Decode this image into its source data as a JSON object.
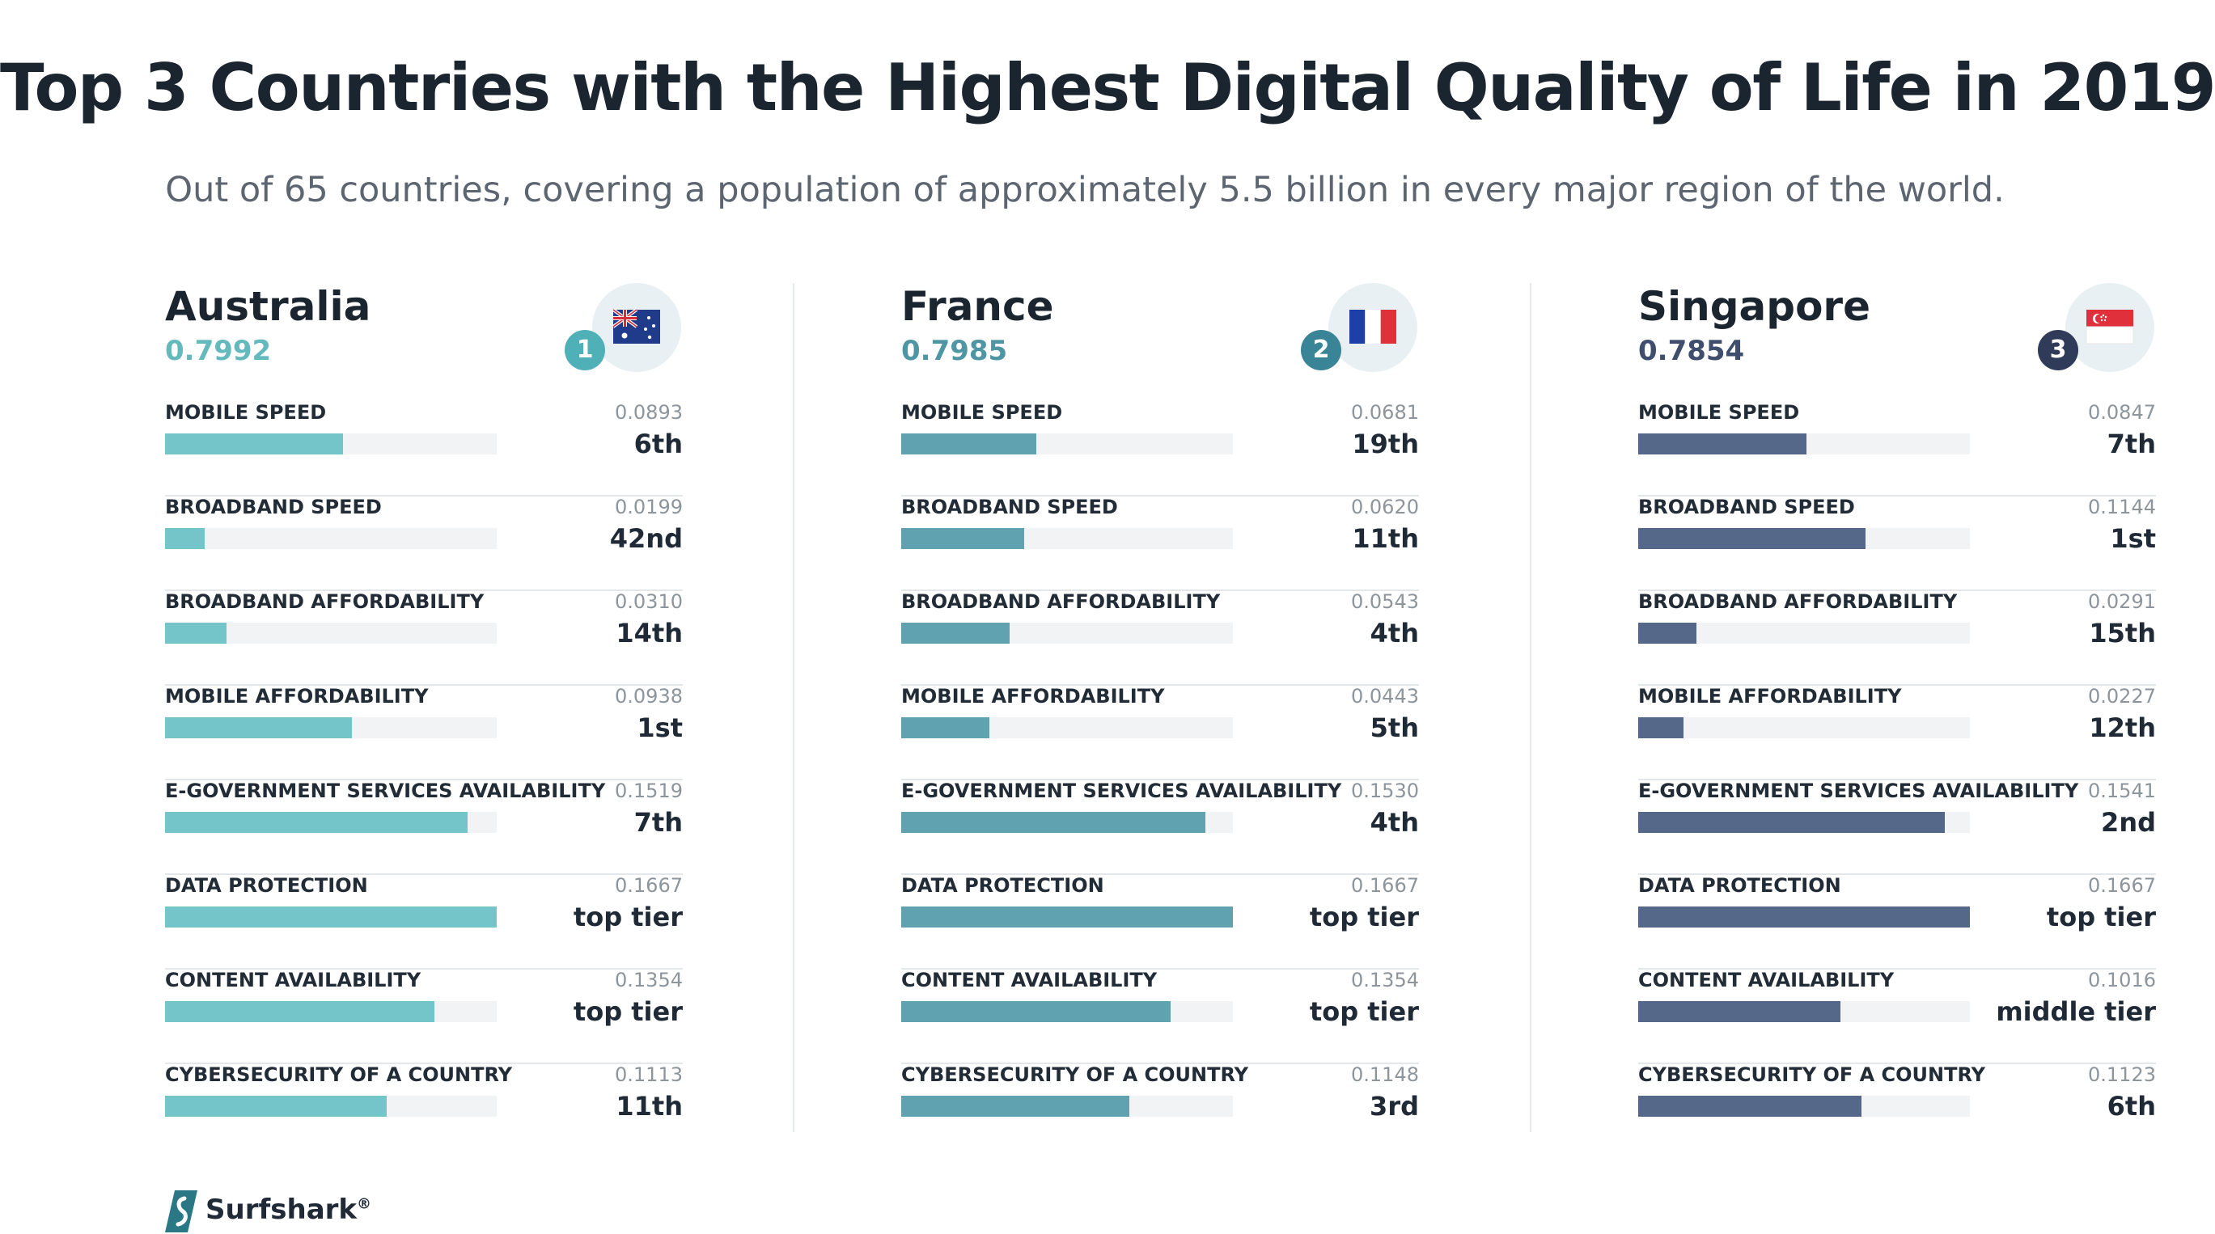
{
  "header": {
    "title": "Top 3 Countries with the Highest Digital Quality of Life in 2019",
    "subtitle": "Out of 65 countries, covering a population of approximately 5.5 billion in every major region of the world."
  },
  "brand": {
    "name": "Surfshark",
    "mark": "®",
    "icon": "surfshark-logo-icon",
    "color": "#2a7785"
  },
  "chart_data": {
    "type": "bar",
    "title": "Top 3 Countries with the Highest Digital Quality of Life in 2019",
    "subtitle": "Out of 65 countries, covering a population of approximately 5.5 billion in every major region of the world.",
    "orientation": "horizontal",
    "bar_max": 0.1667,
    "categories": [
      "MOBILE SPEED",
      "BROADBAND SPEED",
      "BROADBAND AFFORDABILITY",
      "MOBILE AFFORDABILITY",
      "E-GOVERNMENT SERVICES AVAILABILITY",
      "DATA PROTECTION",
      "CONTENT AVAILABILITY",
      "CYBERSECURITY OF A COUNTRY"
    ],
    "countries": [
      {
        "name": "Australia",
        "score": "0.7992",
        "rank": "1",
        "flag_icon": "australia-flag-icon",
        "color": "#74c5c9",
        "score_color": "#64b9bd",
        "badge_color": "#4fb0b8",
        "values": [
          0.0893,
          0.0199,
          0.031,
          0.0938,
          0.1519,
          0.1667,
          0.1354,
          0.1113
        ],
        "value_labels": [
          "0.0893",
          "0.0199",
          "0.0310",
          "0.0938",
          "0.1519",
          "0.1667",
          "0.1354",
          "0.1113"
        ],
        "ranks": [
          "6th",
          "42nd",
          "14th",
          "1st",
          "7th",
          "top tier",
          "top tier",
          "11th"
        ]
      },
      {
        "name": "France",
        "score": "0.7985",
        "rank": "2",
        "flag_icon": "france-flag-icon",
        "color": "#60a2b0",
        "score_color": "#4f96a4",
        "badge_color": "#3a8497",
        "values": [
          0.0681,
          0.062,
          0.0543,
          0.0443,
          0.153,
          0.1667,
          0.1354,
          0.1148
        ],
        "value_labels": [
          "0.0681",
          "0.0620",
          "0.0543",
          "0.0443",
          "0.1530",
          "0.1667",
          "0.1354",
          "0.1148"
        ],
        "ranks": [
          "19th",
          "11th",
          "4th",
          "5th",
          "4th",
          "top tier",
          "top tier",
          "3rd"
        ]
      },
      {
        "name": "Singapore",
        "score": "0.7854",
        "rank": "3",
        "flag_icon": "singapore-flag-icon",
        "color": "#56688a",
        "score_color": "#3e4e6c",
        "badge_color": "#2f3b58",
        "values": [
          0.0847,
          0.1144,
          0.0291,
          0.0227,
          0.1541,
          0.1667,
          0.1016,
          0.1123
        ],
        "value_labels": [
          "0.0847",
          "0.1144",
          "0.0291",
          "0.0227",
          "0.1541",
          "0.1667",
          "0.1016",
          "0.1123"
        ],
        "ranks": [
          "7th",
          "1st",
          "15th",
          "12th",
          "2nd",
          "top tier",
          "middle tier",
          "6th"
        ]
      }
    ]
  }
}
